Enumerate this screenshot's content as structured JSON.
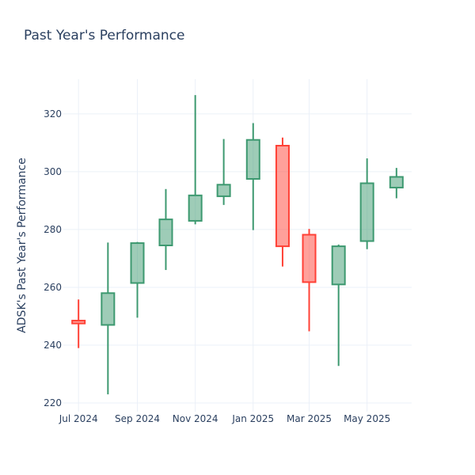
{
  "chart_data": {
    "type": "candlestick",
    "title": "Past Year's Performance",
    "xlabel": "",
    "ylabel": "ADSK's Past Year's Performance",
    "ylim": [
      217,
      332
    ],
    "yticks": [
      220,
      240,
      260,
      280,
      300,
      320
    ],
    "xticks": [
      {
        "label": "Jul 2024",
        "date": "2024-07-01"
      },
      {
        "label": "Sep 2024",
        "date": "2024-09-01"
      },
      {
        "label": "Nov 2024",
        "date": "2024-11-01"
      },
      {
        "label": "Jan 2025",
        "date": "2025-01-01"
      },
      {
        "label": "Mar 2025",
        "date": "2025-03-01"
      },
      {
        "label": "May 2025",
        "date": "2025-05-01"
      }
    ],
    "xlim": [
      "2024-06-15",
      "2025-06-17"
    ],
    "grid": true,
    "colors": {
      "increasing_line": "#3d9970",
      "increasing_fill": "rgba(61,153,112,0.5)",
      "decreasing_line": "#ff4136",
      "decreasing_fill": "rgba(255,65,54,0.5)"
    },
    "candles": [
      {
        "date": "2024-07-01",
        "open": 248.5,
        "high": 255.8,
        "low": 239.0,
        "close": 247.5
      },
      {
        "date": "2024-08-01",
        "open": 247.0,
        "high": 275.5,
        "low": 223.0,
        "close": 258.0
      },
      {
        "date": "2024-09-01",
        "open": 261.5,
        "high": 275.7,
        "low": 249.5,
        "close": 275.3
      },
      {
        "date": "2024-10-01",
        "open": 274.5,
        "high": 294.0,
        "low": 266.0,
        "close": 283.5
      },
      {
        "date": "2024-11-01",
        "open": 283.0,
        "high": 326.5,
        "low": 281.8,
        "close": 291.8
      },
      {
        "date": "2024-12-01",
        "open": 291.5,
        "high": 311.3,
        "low": 288.5,
        "close": 295.5
      },
      {
        "date": "2025-01-01",
        "open": 297.5,
        "high": 316.8,
        "low": 279.8,
        "close": 311.0
      },
      {
        "date": "2025-02-01",
        "open": 309.0,
        "high": 311.8,
        "low": 267.2,
        "close": 274.2
      },
      {
        "date": "2025-03-01",
        "open": 278.2,
        "high": 280.2,
        "low": 244.8,
        "close": 261.8
      },
      {
        "date": "2025-04-01",
        "open": 261.0,
        "high": 274.8,
        "low": 232.8,
        "close": 274.2
      },
      {
        "date": "2025-05-01",
        "open": 276.0,
        "high": 304.6,
        "low": 273.2,
        "close": 296.0
      },
      {
        "date": "2025-06-01",
        "open": 294.5,
        "high": 301.3,
        "low": 290.8,
        "close": 298.2
      }
    ]
  }
}
